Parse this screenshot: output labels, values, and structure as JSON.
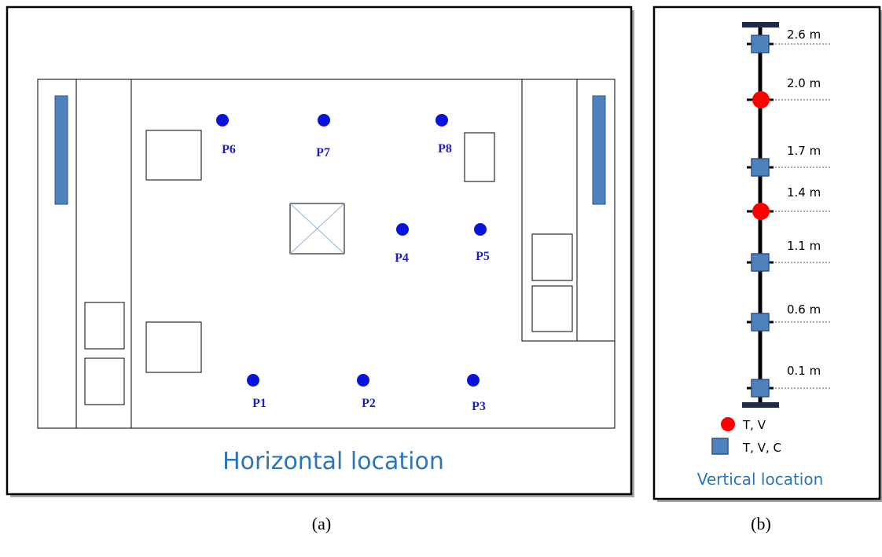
{
  "panel_a": {
    "caption": "Horizontal location",
    "points": [
      {
        "id": "P1"
      },
      {
        "id": "P2"
      },
      {
        "id": "P3"
      },
      {
        "id": "P4"
      },
      {
        "id": "P5"
      },
      {
        "id": "P6"
      },
      {
        "id": "P7"
      },
      {
        "id": "P8"
      }
    ],
    "point_color": "#0a14d8",
    "wall_bar_color": "#4f81bd"
  },
  "panel_b": {
    "caption": "Vertical location",
    "heights": [
      "2.6 m",
      "2.0 m",
      "1.7 m",
      "1.4 m",
      "1.1 m",
      "0.6 m",
      "0.1 m"
    ],
    "legend": {
      "circle_label": "T, V",
      "square_label": "T, V, C"
    },
    "circle_color": "#ff0000",
    "square_color": "#4f81bd"
  },
  "subfig_labels": {
    "a": "(a)",
    "b": "(b)"
  }
}
